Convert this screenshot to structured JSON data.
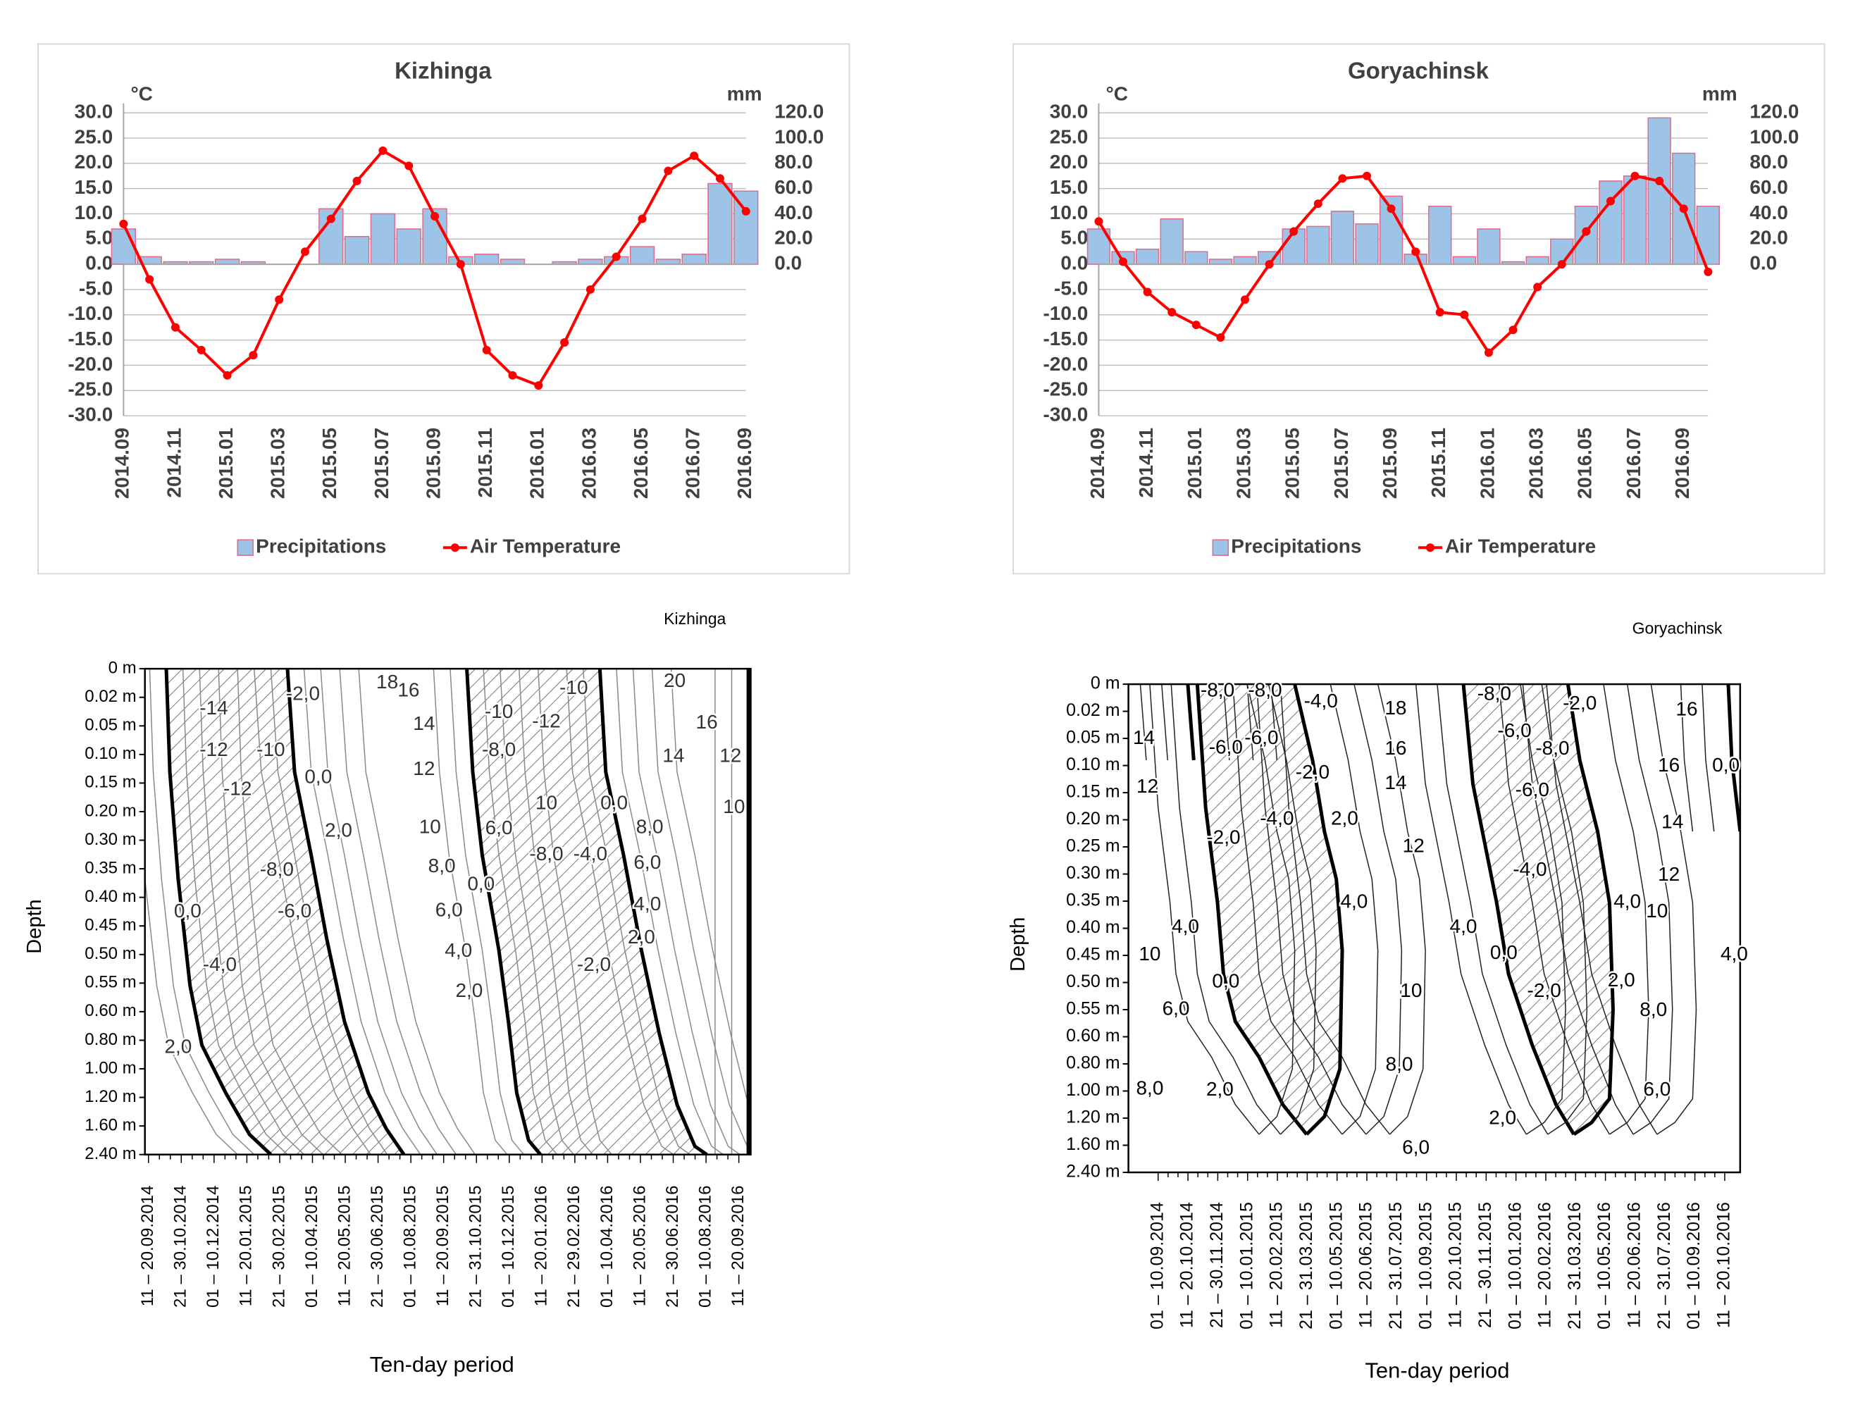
{
  "chart_data": [
    {
      "type": "bar_line",
      "title": "Kizhinga",
      "y_unit": "°C",
      "y2_unit": "mm",
      "categories": [
        "2014.09",
        null,
        "2014.11",
        null,
        "2015.01",
        null,
        "2015.03",
        null,
        "2015.05",
        null,
        "2015.07",
        null,
        "2015.09",
        null,
        "2015.11",
        null,
        "2016.01",
        null,
        "2016.03",
        null,
        "2016.05",
        null,
        "2016.07",
        null,
        "2016.09"
      ],
      "series": [
        {
          "name": "Precipitations",
          "type": "bar",
          "axis": "y2",
          "color": "#9dc3e6",
          "values": [
            28,
            6,
            2,
            2,
            4,
            2,
            0,
            0,
            44,
            22,
            40,
            28,
            44,
            6,
            8,
            4,
            0,
            2,
            4,
            6,
            14,
            4,
            8,
            64,
            58
          ]
        },
        {
          "name": "Air Temperature",
          "type": "line",
          "color": "#ff0000",
          "values": [
            8,
            -3,
            -12.5,
            -17,
            -22,
            -18,
            -7,
            2.5,
            9,
            16.5,
            22.5,
            19.5,
            9.5,
            0,
            -17,
            -22,
            -24,
            -15.5,
            -5,
            1.5,
            9,
            18.5,
            21.5,
            17,
            10.5
          ]
        }
      ],
      "ylim": [
        -30,
        30
      ],
      "yticks": [
        {
          "value": 30,
          "label": "30.0"
        },
        {
          "value": 25,
          "label": "25.0"
        },
        {
          "value": 20,
          "label": "20.0"
        },
        {
          "value": 15,
          "label": "15.0"
        },
        {
          "value": 10,
          "label": "10.0"
        },
        {
          "value": 5,
          "label": "5.0"
        },
        {
          "value": 0,
          "label": "0.0"
        },
        {
          "value": -5,
          "label": "-5.0"
        },
        {
          "value": -10,
          "label": "-10.0"
        },
        {
          "value": -15,
          "label": "-15.0"
        },
        {
          "value": -20,
          "label": "-20.0"
        },
        {
          "value": -25,
          "label": "-25.0"
        },
        {
          "value": -30,
          "label": "-30.0"
        }
      ],
      "y2lim": [
        -120,
        120
      ],
      "y2ticks": [
        {
          "value": 120,
          "label": "120.0"
        },
        {
          "value": 100,
          "label": "100.0"
        },
        {
          "value": 80,
          "label": "80.0"
        },
        {
          "value": 60,
          "label": "60.0"
        },
        {
          "value": 40,
          "label": "40.0"
        },
        {
          "value": 20,
          "label": "20.0"
        },
        {
          "value": 0,
          "label": "0.0"
        }
      ],
      "grid": true,
      "legend": "bottom"
    },
    {
      "type": "bar_line",
      "title": "Goryachinsk",
      "y_unit": "°C",
      "y2_unit": "mm",
      "categories": [
        "2014.09",
        null,
        "2014.11",
        null,
        "2015.01",
        null,
        "2015.03",
        null,
        "2015.05",
        null,
        "2015.07",
        null,
        "2015.09",
        null,
        "2015.11",
        null,
        "2016.01",
        null,
        "2016.03",
        null,
        "2016.05",
        null,
        "2016.07",
        null,
        "2016.09",
        null
      ],
      "series": [
        {
          "name": "Precipitations",
          "type": "bar",
          "axis": "y2",
          "color": "#9dc3e6",
          "values": [
            28,
            10,
            12,
            36,
            10,
            4,
            6,
            10,
            28,
            30,
            42,
            32,
            54,
            8,
            46,
            6,
            28,
            2,
            6,
            20,
            46,
            66,
            70,
            116,
            88,
            46
          ]
        },
        {
          "name": "Air Temperature",
          "type": "line",
          "color": "#ff0000",
          "values": [
            8.5,
            0.5,
            -5.5,
            -9.5,
            -12,
            -14.5,
            -7,
            0,
            6.5,
            12,
            17,
            17.5,
            11,
            2.5,
            -9.5,
            -10,
            -17.5,
            -13,
            -4.5,
            0,
            6.5,
            12.5,
            17.5,
            16.5,
            11,
            -1.5
          ]
        }
      ],
      "ylim": [
        -30,
        30
      ],
      "yticks": [
        {
          "value": 30,
          "label": "30.0"
        },
        {
          "value": 25,
          "label": "25.0"
        },
        {
          "value": 20,
          "label": "20.0"
        },
        {
          "value": 15,
          "label": "15.0"
        },
        {
          "value": 10,
          "label": "10.0"
        },
        {
          "value": 5,
          "label": "5.0"
        },
        {
          "value": 0,
          "label": "0.0"
        },
        {
          "value": -5,
          "label": "-5.0"
        },
        {
          "value": -10,
          "label": "-10.0"
        },
        {
          "value": -15,
          "label": "-15.0"
        },
        {
          "value": -20,
          "label": "-20.0"
        },
        {
          "value": -25,
          "label": "-25.0"
        },
        {
          "value": -30,
          "label": "-30.0"
        }
      ],
      "y2lim": [
        -120,
        120
      ],
      "y2ticks": [
        {
          "value": 120,
          "label": "120.0"
        },
        {
          "value": 100,
          "label": "100.0"
        },
        {
          "value": 80,
          "label": "80.0"
        },
        {
          "value": 60,
          "label": "60.0"
        },
        {
          "value": 40,
          "label": "40.0"
        },
        {
          "value": 20,
          "label": "20.0"
        },
        {
          "value": 0,
          "label": "0.0"
        }
      ],
      "grid": true,
      "legend": "bottom"
    },
    {
      "type": "contour",
      "title": "Kizhinga",
      "ylabel": "Depth",
      "xlabel": "Ten-day period",
      "y_categories": [
        "0 m",
        "0.02 m",
        "0.05 m",
        "0.10 m",
        "0.15 m",
        "0.20 m",
        "0.30 m",
        "0.35 m",
        "0.40 m",
        "0.45 m",
        "0.50 m",
        "0.55 m",
        "0.60 m",
        "0.80 m",
        "1.00 m",
        "1.20 m",
        "1.60 m",
        "2.40 m"
      ],
      "x_categories": [
        "11 – 20.09.2014",
        "21 – 30.10.2014",
        "01 – 10.12.2014",
        "11 – 20.01.2015",
        "21 – 30.02.2015",
        "01 – 10.04.2015",
        "11 – 20.05.2015",
        "21 – 30.06.2015",
        "01 – 10.08.2015",
        "11 – 20.09.2015",
        "21 – 31.10.2015",
        "01 – 10.12.2015",
        "11 – 20.01.2016",
        "21 – 29.02.2016",
        "01 – 10.04.2016",
        "11 – 20.05.2016",
        "21 – 30.06.2016",
        "01 – 10.08.2016",
        "11 – 20.09.2016"
      ],
      "contour_labels": [
        "-14",
        "-12",
        "-10",
        "-12",
        "-2,0",
        "0,0",
        "2,0",
        "-8,0",
        "-6,0",
        "0,0",
        "-4,0",
        "2,0",
        "18",
        "16",
        "14",
        "12",
        "10",
        "8,0",
        "6,0",
        "4,0",
        "2,0",
        "0,0",
        "-10",
        "-12",
        "-8,0",
        "6,0",
        "10",
        "-8,0",
        "-4,0",
        "0,0",
        "-10",
        "8,0",
        "6,0",
        "4,0",
        "2,0",
        "-2,0",
        "20",
        "16",
        "14",
        "12",
        "10"
      ]
    },
    {
      "type": "contour",
      "title": "Goryachinsk",
      "ylabel": "Depth",
      "xlabel": "Ten-day period",
      "y_categories": [
        "0 m",
        "0.02 m",
        "0.05 m",
        "0.10 m",
        "0.15 m",
        "0.20 m",
        "0.25 m",
        "0.30 m",
        "0.35 m",
        "0.40 m",
        "0.45 m",
        "0.50 m",
        "0.55 m",
        "0.60 m",
        "0.80 m",
        "1.00 m",
        "1.20 m",
        "1.60 m",
        "2.40 m"
      ],
      "x_categories": [
        "01 – 10.09.2014",
        "11 – 20.10.2014",
        "21 – 30.11.2014",
        "01 – 10.01.2015",
        "11 – 20.02.2015",
        "21 – 31.03.2015",
        "01 – 10.05.2015",
        "11 – 20.06.2015",
        "21 – 31.07.2015",
        "01 – 10.09.2015",
        "11 – 20.10.2015",
        "21 – 30.11.2015",
        "01 – 10.01.2016",
        "11 – 20.02.2016",
        "21 – 31.03.2016",
        "01 – 10.05.2016",
        "11 – 20.06.2016",
        "21 – 31.07.2016",
        "01 – 10.09.2016",
        "11 – 20.10.2016"
      ],
      "contour_labels": [
        "-8,0",
        "-8,0",
        "-4,0",
        "14",
        "12",
        "-6,0",
        "-6,0",
        "18",
        "16",
        "14",
        "-2,0",
        "-4,0",
        "2,0",
        "-2,0",
        "12",
        "4,0",
        "4,0",
        "10",
        "0,0",
        "6,0",
        "10",
        "8,0",
        "2,0",
        "8,0",
        "6,0",
        "-8,0",
        "-6,0",
        "-8,0",
        "-2,0",
        "-6,0",
        "-4,0",
        "4,0",
        "0,0",
        "-2,0",
        "2,0",
        "8,0",
        "2,0",
        "4,0",
        "10",
        "12",
        "14",
        "16",
        "16",
        "6,0",
        "0,0",
        "4,0"
      ]
    }
  ]
}
